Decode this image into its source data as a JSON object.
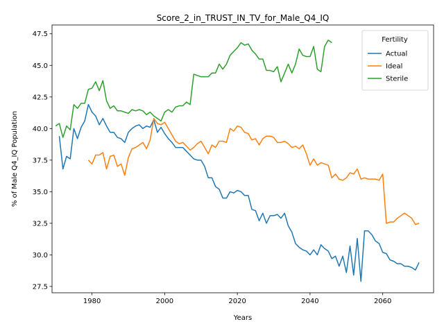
{
  "chart_data": {
    "type": "line",
    "title": "Score_2_in_TRUST_IN_TV_for_Male_Q4_IQ",
    "xlabel": "Years",
    "ylabel": "% of Male Q4_IQ Population",
    "xlim": [
      1969,
      2074
    ],
    "ylim": [
      27.0,
      48.2
    ],
    "xticks": [
      1980,
      2000,
      2020,
      2040,
      2060
    ],
    "yticks": [
      27.5,
      30.0,
      32.5,
      35.0,
      37.5,
      40.0,
      42.5,
      45.0,
      47.5
    ],
    "grid": false,
    "legend": {
      "title": "Fertility",
      "placement": "top-right"
    },
    "series": [
      {
        "name": "Actual",
        "color": "#1f77b4",
        "x": [
          1971,
          1972,
          1973,
          1974,
          1975,
          1976,
          1977,
          1978,
          1979,
          1980,
          1981,
          1982,
          1983,
          1984,
          1985,
          1986,
          1987,
          1988,
          1989,
          1990,
          1991,
          1992,
          1993,
          1994,
          1995,
          1996,
          1997,
          1998,
          1999,
          2000,
          2001,
          2002,
          2003,
          2004,
          2005,
          2006,
          2007,
          2008,
          2009,
          2010,
          2011,
          2012,
          2013,
          2014,
          2015,
          2016,
          2017,
          2018,
          2019,
          2020,
          2021,
          2022,
          2023,
          2024,
          2025,
          2026,
          2027,
          2028,
          2029,
          2030,
          2031,
          2032,
          2033,
          2034,
          2035,
          2036,
          2037,
          2038,
          2039,
          2040,
          2041,
          2042,
          2043,
          2044,
          2045,
          2046,
          2047,
          2048,
          2049,
          2050,
          2051,
          2052,
          2053,
          2054,
          2055,
          2056,
          2057,
          2058,
          2059,
          2060,
          2061,
          2062,
          2063,
          2064,
          2065,
          2066,
          2067,
          2068,
          2069,
          2070
        ],
        "values": [
          39.4,
          36.8,
          37.8,
          37.6,
          40.0,
          39.2,
          40.1,
          40.6,
          41.9,
          41.3,
          41.0,
          40.3,
          40.8,
          40.2,
          39.7,
          39.7,
          39.3,
          39.2,
          38.9,
          39.7,
          40.0,
          40.2,
          40.3,
          40.0,
          40.2,
          40.1,
          40.7,
          39.7,
          40.1,
          39.6,
          39.2,
          38.9,
          38.5,
          38.5,
          38.5,
          38.2,
          37.9,
          37.6,
          37.5,
          37.5,
          37.0,
          36.1,
          36.1,
          35.4,
          35.2,
          34.5,
          34.5,
          35.0,
          34.9,
          35.1,
          35.0,
          34.7,
          34.7,
          33.6,
          33.5,
          32.7,
          33.3,
          32.5,
          33.1,
          33.1,
          33.2,
          32.9,
          33.3,
          32.3,
          31.8,
          30.9,
          30.6,
          30.4,
          30.3,
          30.0,
          30.4,
          30.0,
          30.8,
          30.5,
          30.3,
          29.7,
          29.9,
          29.1,
          29.9,
          28.6,
          30.7,
          28.4,
          31.3,
          27.9,
          31.9,
          31.9,
          31.6,
          31.1,
          30.9,
          30.2,
          30.1,
          29.6,
          29.5,
          29.3,
          29.3,
          29.1,
          29.1,
          29.0,
          28.8,
          29.4
        ]
      },
      {
        "name": "Ideal",
        "color": "#ff7f0e",
        "x": [
          1979,
          1980,
          1981,
          1982,
          1983,
          1984,
          1985,
          1986,
          1987,
          1988,
          1989,
          1990,
          1991,
          1992,
          1993,
          1994,
          1995,
          1996,
          1997,
          1998,
          1999,
          2000,
          2001,
          2002,
          2003,
          2004,
          2005,
          2006,
          2007,
          2008,
          2009,
          2010,
          2011,
          2012,
          2013,
          2014,
          2015,
          2016,
          2017,
          2018,
          2019,
          2020,
          2021,
          2022,
          2023,
          2024,
          2025,
          2026,
          2027,
          2028,
          2029,
          2030,
          2031,
          2032,
          2033,
          2034,
          2035,
          2036,
          2037,
          2038,
          2039,
          2040,
          2041,
          2042,
          2043,
          2044,
          2045,
          2046,
          2047,
          2048,
          2049,
          2050,
          2051,
          2052,
          2053,
          2054,
          2055,
          2056,
          2057,
          2058,
          2059,
          2060,
          2061,
          2062,
          2063,
          2064,
          2065,
          2066,
          2067,
          2068,
          2069,
          2070
        ],
        "values": [
          37.5,
          37.2,
          37.9,
          37.9,
          38.1,
          36.8,
          37.8,
          37.9,
          37.0,
          37.2,
          36.3,
          37.7,
          38.4,
          38.5,
          38.7,
          38.9,
          38.4,
          39.1,
          40.8,
          40.4,
          40.3,
          40.5,
          40.0,
          39.5,
          39.0,
          38.8,
          38.9,
          38.6,
          38.3,
          38.5,
          38.8,
          39.0,
          38.5,
          38.0,
          38.7,
          38.5,
          39.0,
          39.0,
          38.9,
          40.0,
          39.8,
          40.2,
          40.1,
          39.7,
          39.6,
          39.1,
          39.2,
          38.7,
          39.2,
          39.4,
          39.4,
          39.3,
          38.9,
          38.9,
          39.0,
          38.8,
          38.5,
          38.6,
          38.4,
          38.7,
          38.0,
          37.1,
          37.6,
          37.1,
          37.3,
          37.2,
          37.1,
          36.1,
          36.4,
          36.0,
          35.9,
          36.1,
          36.5,
          36.4,
          36.8,
          36.0,
          36.1,
          36.0,
          36.0,
          36.0,
          35.9,
          36.4,
          32.5,
          32.6,
          32.6,
          32.9,
          33.1,
          33.3,
          33.1,
          32.9,
          32.4,
          32.5
        ]
      },
      {
        "name": "Sterile",
        "color": "#2ca02c",
        "x": [
          1970,
          1971,
          1972,
          1973,
          1974,
          1975,
          1976,
          1977,
          1978,
          1979,
          1980,
          1981,
          1982,
          1983,
          1984,
          1985,
          1986,
          1987,
          1988,
          1989,
          1990,
          1991,
          1992,
          1993,
          1994,
          1995,
          1996,
          1997,
          1998,
          1999,
          2000,
          2001,
          2002,
          2003,
          2004,
          2005,
          2006,
          2007,
          2008,
          2009,
          2010,
          2011,
          2012,
          2013,
          2014,
          2015,
          2016,
          2017,
          2018,
          2019,
          2020,
          2021,
          2022,
          2023,
          2024,
          2025,
          2026,
          2027,
          2028,
          2029,
          2030,
          2031,
          2032,
          2033,
          2034,
          2035,
          2036,
          2037,
          2038,
          2039,
          2040,
          2041,
          2042,
          2043,
          2044,
          2045,
          2046
        ],
        "values": [
          40.2,
          40.4,
          39.3,
          40.2,
          39.9,
          41.9,
          41.6,
          42.0,
          42.0,
          43.1,
          43.2,
          43.7,
          43.0,
          43.8,
          42.2,
          41.6,
          41.8,
          41.4,
          41.4,
          41.3,
          41.2,
          41.5,
          41.4,
          41.5,
          41.4,
          41.1,
          41.3,
          41.0,
          40.8,
          40.6,
          41.3,
          41.5,
          41.3,
          41.7,
          41.8,
          41.8,
          42.1,
          41.9,
          44.3,
          44.2,
          44.1,
          44.1,
          44.1,
          44.4,
          44.4,
          45.1,
          44.7,
          45.1,
          45.8,
          46.1,
          46.4,
          46.8,
          46.6,
          46.7,
          46.2,
          45.9,
          45.5,
          45.5,
          44.6,
          44.6,
          44.5,
          44.9,
          43.7,
          44.4,
          45.1,
          44.4,
          45.1,
          46.3,
          45.8,
          45.7,
          45.7,
          46.5,
          44.7,
          44.5,
          46.5,
          47.0,
          46.8
        ]
      }
    ]
  }
}
